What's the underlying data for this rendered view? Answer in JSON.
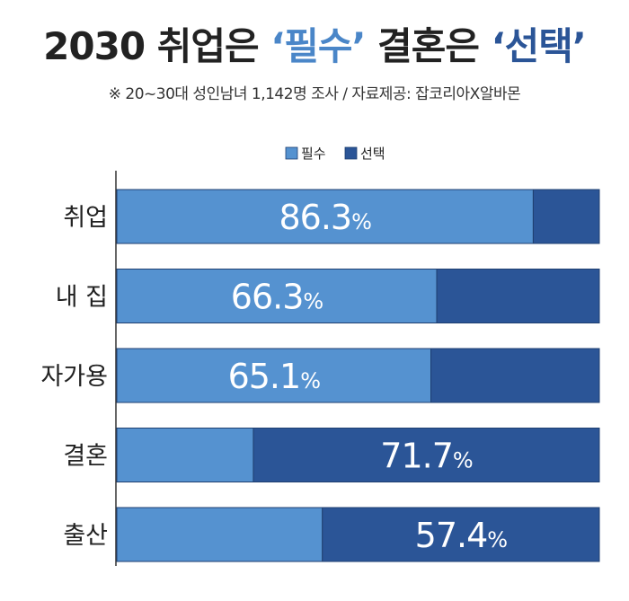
{
  "header": {
    "title_prefix": "2030 취업은 ",
    "title_h1": "‘필수’",
    "title_mid": " 결혼은 ",
    "title_h2": "‘선택’",
    "subtitle": "※ 20~30대 성인남녀 1,142명 조사 / 자료제공: 잡코리아X알바몬"
  },
  "chart_data": {
    "type": "bar",
    "orientation": "horizontal",
    "stacked": true,
    "percent_scale": true,
    "categories": [
      "취업",
      "내 집",
      "자가용",
      "결혼",
      "출산"
    ],
    "series": [
      {
        "name": "필수",
        "color": "#5592d0",
        "values": [
          86.3,
          66.3,
          65.1,
          28.3,
          42.6
        ]
      },
      {
        "name": "선택",
        "color": "#2b5597",
        "values": [
          13.7,
          33.7,
          34.9,
          71.7,
          57.4
        ]
      }
    ],
    "labels": [
      {
        "value": "86.3",
        "unit": "%",
        "series": 0
      },
      {
        "value": "66.3",
        "unit": "%",
        "series": 0
      },
      {
        "value": "65.1",
        "unit": "%",
        "series": 0
      },
      {
        "value": "71.7",
        "unit": "%",
        "series": 1
      },
      {
        "value": "57.4",
        "unit": "%",
        "series": 1
      }
    ],
    "xlim": [
      0,
      100
    ],
    "legend_position": "top-center",
    "grid": false
  }
}
